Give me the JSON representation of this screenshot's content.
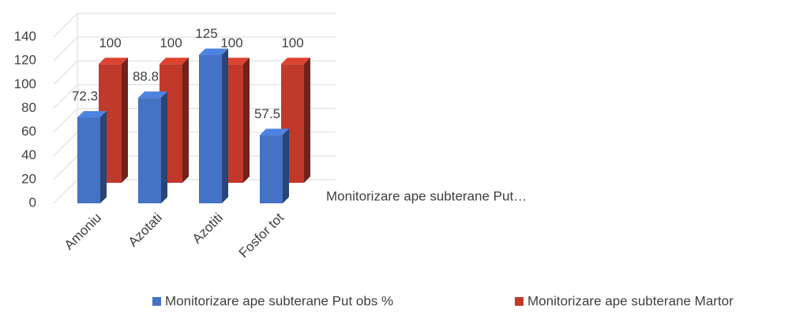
{
  "chart_data": {
    "type": "bar3d",
    "categories": [
      "Amoniu",
      "Azotati",
      "Azotiti",
      "Fosfor tot"
    ],
    "series": [
      {
        "name": "Monitorizare ape subterane Put obs %",
        "color": "#4472c4",
        "values": [
          72.3,
          88.8,
          125,
          57.5
        ]
      },
      {
        "name": "Monitorizare ape subterane Martor",
        "color": "#c0392b",
        "values": [
          100,
          100,
          100,
          100
        ]
      }
    ],
    "depth_axis_label": "Monitorizare ape subterane Put…",
    "ylim": [
      0,
      140
    ],
    "yticks": [
      0,
      20,
      40,
      60,
      80,
      100,
      120,
      140
    ],
    "grid": true
  }
}
